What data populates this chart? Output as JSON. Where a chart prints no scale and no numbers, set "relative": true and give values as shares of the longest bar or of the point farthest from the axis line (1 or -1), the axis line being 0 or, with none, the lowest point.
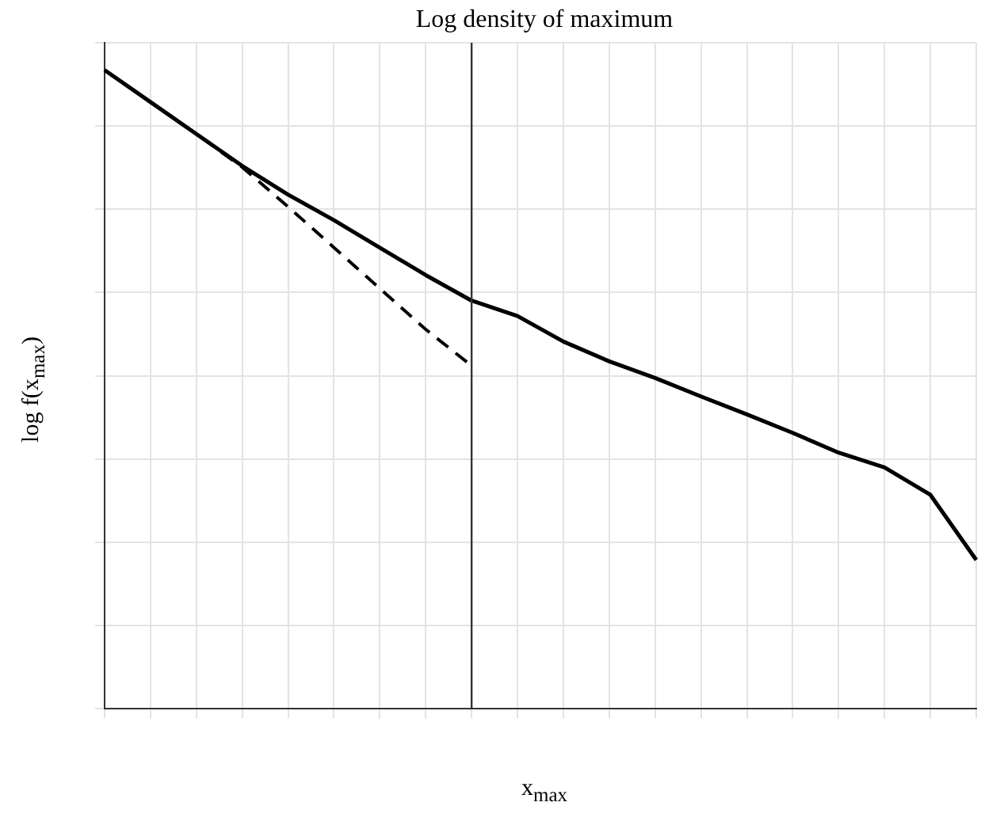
{
  "chart_data": {
    "type": "line",
    "title": "Log density of maximum",
    "xlabel": "x$_{max}$",
    "ylabel": "log f(x$_{max}$)",
    "categories": [
      null,
      null,
      null,
      null,
      null,
      null,
      null,
      null,
      null,
      null,
      null,
      null,
      null,
      null,
      null,
      null,
      null,
      null,
      null,
      null
    ],
    "relative": true,
    "grid": true,
    "legend": false,
    "marker": "none",
    "series": [
      {
        "color": "#000000",
        "line_style": "solid",
        "values": [
          1.0,
          0.95,
          0.9,
          0.85,
          0.805,
          0.765,
          0.722,
          0.679,
          0.639,
          0.615,
          0.575,
          0.544,
          0.518,
          0.489,
          0.461,
          0.432,
          0.401,
          0.378,
          0.335,
          0.233
        ]
      },
      {
        "color": "#000000",
        "line_style": "dashed",
        "values": [
          1.0,
          0.95,
          0.9,
          0.848,
          0.786,
          0.722,
          0.658,
          0.594,
          0.537,
          null,
          null,
          null,
          null,
          null,
          null,
          null,
          null,
          null,
          null,
          null
        ]
      }
    ]
  }
}
